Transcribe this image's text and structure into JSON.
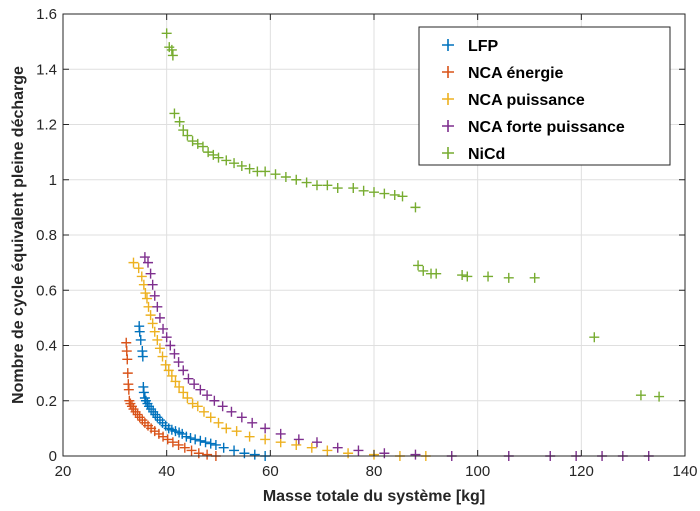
{
  "chart_data": {
    "type": "scatter",
    "title": "",
    "xlabel": "Masse totale du système [kg]",
    "ylabel": "Nombre de cycle équivalent pleine décharge",
    "xlim": [
      20,
      140
    ],
    "ylim": [
      0,
      1.6
    ],
    "xticks": [
      "20",
      "40",
      "60",
      "80",
      "100",
      "120",
      "140"
    ],
    "yticks": [
      "0",
      "0.2",
      "0.4",
      "0.6",
      "0.8",
      "1",
      "1.2",
      "1.4",
      "1.6"
    ],
    "grid": true,
    "legend_position": "top-right",
    "marker": "plus",
    "series": [
      {
        "name": "LFP",
        "color": "#0072BD",
        "points": [
          [
            34.7,
            0.47
          ],
          [
            34.8,
            0.45
          ],
          [
            35.0,
            0.42
          ],
          [
            35.3,
            0.38
          ],
          [
            35.4,
            0.36
          ],
          [
            35.5,
            0.25
          ],
          [
            35.6,
            0.23
          ],
          [
            35.8,
            0.21
          ],
          [
            36.0,
            0.2
          ],
          [
            36.3,
            0.19
          ],
          [
            36.6,
            0.18
          ],
          [
            37.0,
            0.17
          ],
          [
            37.4,
            0.16
          ],
          [
            37.8,
            0.15
          ],
          [
            38.2,
            0.14
          ],
          [
            38.7,
            0.13
          ],
          [
            39.2,
            0.12
          ],
          [
            39.8,
            0.11
          ],
          [
            40.4,
            0.1
          ],
          [
            41.0,
            0.095
          ],
          [
            41.7,
            0.09
          ],
          [
            42.4,
            0.085
          ],
          [
            43.0,
            0.08
          ],
          [
            43.8,
            0.07
          ],
          [
            44.6,
            0.065
          ],
          [
            45.5,
            0.06
          ],
          [
            46.5,
            0.055
          ],
          [
            47.5,
            0.05
          ],
          [
            48.5,
            0.045
          ],
          [
            49.5,
            0.04
          ],
          [
            51,
            0.03
          ],
          [
            53,
            0.02
          ],
          [
            55,
            0.01
          ],
          [
            57,
            0.005
          ],
          [
            59,
            0.0
          ]
        ]
      },
      {
        "name": "NCA énergie",
        "color": "#D95319",
        "points": [
          [
            32.2,
            0.41
          ],
          [
            32.3,
            0.38
          ],
          [
            32.4,
            0.35
          ],
          [
            32.5,
            0.3
          ],
          [
            32.6,
            0.26
          ],
          [
            32.7,
            0.24
          ],
          [
            32.8,
            0.2
          ],
          [
            33.0,
            0.19
          ],
          [
            33.3,
            0.18
          ],
          [
            33.6,
            0.17
          ],
          [
            34.0,
            0.16
          ],
          [
            34.4,
            0.15
          ],
          [
            34.8,
            0.14
          ],
          [
            35.3,
            0.13
          ],
          [
            35.8,
            0.12
          ],
          [
            36.4,
            0.11
          ],
          [
            37.0,
            0.1
          ],
          [
            37.7,
            0.09
          ],
          [
            38.5,
            0.08
          ],
          [
            39.3,
            0.07
          ],
          [
            40.2,
            0.06
          ],
          [
            41.2,
            0.05
          ],
          [
            42.3,
            0.04
          ],
          [
            43.5,
            0.03
          ],
          [
            44.8,
            0.02
          ],
          [
            46.2,
            0.01
          ],
          [
            47.8,
            0.005
          ],
          [
            49.5,
            0.0
          ]
        ]
      },
      {
        "name": "NCA puissance",
        "color": "#EDB120",
        "points": [
          [
            33.6,
            0.7
          ],
          [
            34.6,
            0.68
          ],
          [
            35.2,
            0.65
          ],
          [
            35.6,
            0.62
          ],
          [
            35.9,
            0.59
          ],
          [
            36.2,
            0.57
          ],
          [
            36.5,
            0.54
          ],
          [
            36.9,
            0.51
          ],
          [
            37.3,
            0.48
          ],
          [
            37.7,
            0.45
          ],
          [
            38.2,
            0.42
          ],
          [
            38.7,
            0.39
          ],
          [
            39.2,
            0.36
          ],
          [
            39.8,
            0.33
          ],
          [
            40.4,
            0.31
          ],
          [
            41.0,
            0.29
          ],
          [
            41.7,
            0.27
          ],
          [
            42.4,
            0.25
          ],
          [
            43.2,
            0.23
          ],
          [
            44.0,
            0.21
          ],
          [
            45.0,
            0.19
          ],
          [
            46.0,
            0.18
          ],
          [
            47.2,
            0.16
          ],
          [
            48.5,
            0.14
          ],
          [
            50.0,
            0.12
          ],
          [
            51.5,
            0.1
          ],
          [
            53.5,
            0.09
          ],
          [
            56,
            0.07
          ],
          [
            59,
            0.06
          ],
          [
            62,
            0.05
          ],
          [
            65,
            0.04
          ],
          [
            68,
            0.03
          ],
          [
            71,
            0.02
          ],
          [
            75,
            0.01
          ],
          [
            80,
            0.005
          ],
          [
            85,
            0.0
          ],
          [
            90,
            0.0
          ]
        ]
      },
      {
        "name": "NCA forte puissance",
        "color": "#7E2F8E",
        "points": [
          [
            35.8,
            0.72
          ],
          [
            36.4,
            0.7
          ],
          [
            36.9,
            0.66
          ],
          [
            37.3,
            0.62
          ],
          [
            37.7,
            0.58
          ],
          [
            38.2,
            0.54
          ],
          [
            38.7,
            0.5
          ],
          [
            39.3,
            0.46
          ],
          [
            40.0,
            0.43
          ],
          [
            40.7,
            0.4
          ],
          [
            41.5,
            0.37
          ],
          [
            42.3,
            0.34
          ],
          [
            43.2,
            0.31
          ],
          [
            44.2,
            0.28
          ],
          [
            45.3,
            0.26
          ],
          [
            46.5,
            0.24
          ],
          [
            47.8,
            0.22
          ],
          [
            49.2,
            0.2
          ],
          [
            50.8,
            0.18
          ],
          [
            52.5,
            0.16
          ],
          [
            54.5,
            0.14
          ],
          [
            56.5,
            0.12
          ],
          [
            59,
            0.1
          ],
          [
            62,
            0.08
          ],
          [
            65.5,
            0.06
          ],
          [
            69,
            0.05
          ],
          [
            73,
            0.03
          ],
          [
            77,
            0.02
          ],
          [
            82,
            0.01
          ],
          [
            88,
            0.005
          ],
          [
            95,
            0.0
          ],
          [
            106,
            0.0
          ],
          [
            114,
            0.0
          ],
          [
            119,
            0.0
          ],
          [
            124,
            0.0
          ],
          [
            128,
            0.0
          ],
          [
            133,
            0.0
          ]
        ]
      },
      {
        "name": "NiCd",
        "color": "#77AC30",
        "points": [
          [
            40.0,
            1.53
          ],
          [
            40.5,
            1.48
          ],
          [
            41.0,
            1.47
          ],
          [
            41.2,
            1.45
          ],
          [
            41.5,
            1.24
          ],
          [
            42.5,
            1.21
          ],
          [
            43.2,
            1.18
          ],
          [
            44.0,
            1.16
          ],
          [
            45.0,
            1.14
          ],
          [
            46.0,
            1.13
          ],
          [
            47.0,
            1.12
          ],
          [
            48.0,
            1.1
          ],
          [
            49.0,
            1.09
          ],
          [
            50.0,
            1.08
          ],
          [
            51.5,
            1.07
          ],
          [
            53.0,
            1.06
          ],
          [
            54.5,
            1.05
          ],
          [
            56.0,
            1.04
          ],
          [
            57.5,
            1.03
          ],
          [
            59.0,
            1.03
          ],
          [
            61.0,
            1.02
          ],
          [
            63.0,
            1.01
          ],
          [
            65.0,
            1.0
          ],
          [
            67.0,
            0.99
          ],
          [
            69.0,
            0.98
          ],
          [
            71.0,
            0.98
          ],
          [
            73.0,
            0.97
          ],
          [
            76.0,
            0.97
          ],
          [
            78.0,
            0.96
          ],
          [
            80.0,
            0.955
          ],
          [
            82.0,
            0.95
          ],
          [
            84.0,
            0.945
          ],
          [
            85.5,
            0.94
          ],
          [
            88.0,
            0.9
          ],
          [
            88.5,
            0.69
          ],
          [
            89.5,
            0.67
          ],
          [
            91.0,
            0.66
          ],
          [
            92.0,
            0.66
          ],
          [
            97.0,
            0.655
          ],
          [
            98.0,
            0.65
          ],
          [
            102.0,
            0.65
          ],
          [
            106.0,
            0.645
          ],
          [
            111.0,
            0.645
          ],
          [
            122.5,
            0.43
          ],
          [
            131.5,
            0.22
          ],
          [
            135.0,
            0.215
          ]
        ]
      }
    ]
  }
}
